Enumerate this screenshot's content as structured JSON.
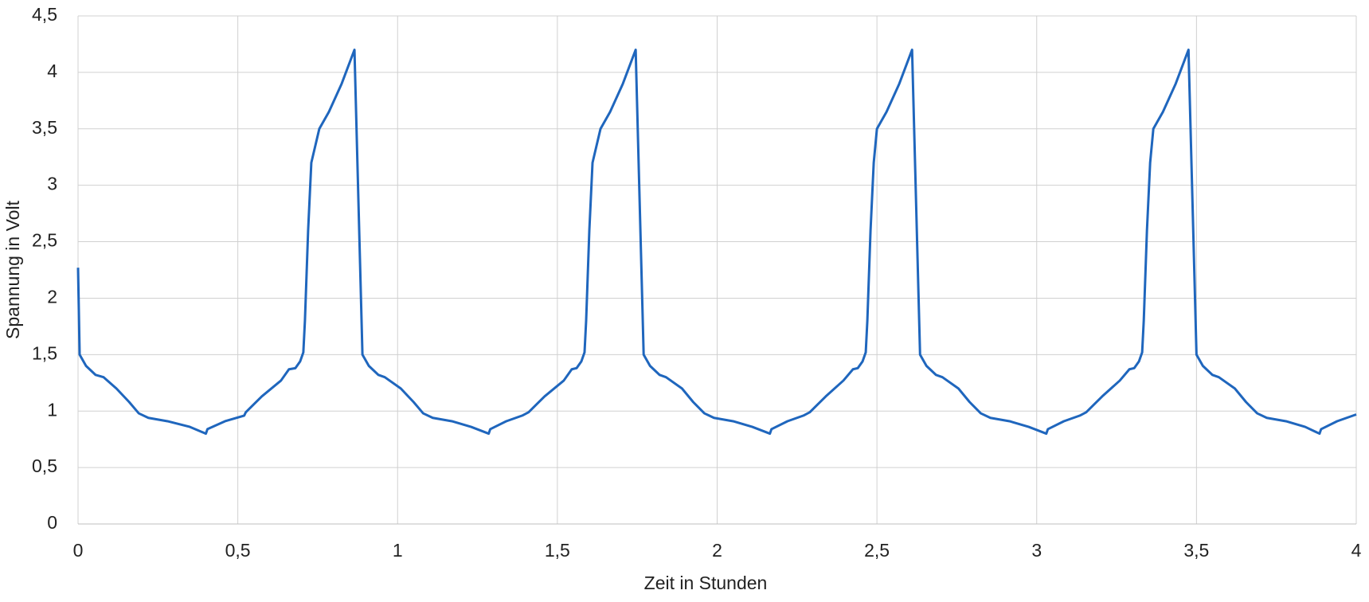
{
  "chart_data": {
    "type": "line",
    "x_label": "Zeit in Stunden",
    "y_label": "Spannung in Volt",
    "x": [
      0,
      0.005,
      0.025,
      0.055,
      0.08,
      0.12,
      0.16,
      0.19,
      0.22,
      0.28,
      0.35,
      0.4,
      0.405,
      0.46,
      0.52,
      0.525,
      0.575,
      0.635,
      0.66,
      0.68,
      0.695,
      0.705,
      0.71,
      0.72,
      0.73,
      0.755,
      0.785,
      0.825,
      0.865,
      0.89,
      0.91,
      0.94,
      0.96,
      1.01,
      1.05,
      1.08,
      1.11,
      1.17,
      1.23,
      1.285,
      1.29,
      1.34,
      1.39,
      1.41,
      1.46,
      1.52,
      1.545,
      1.56,
      1.575,
      1.585,
      1.59,
      1.6,
      1.61,
      1.635,
      1.665,
      1.705,
      1.745,
      1.77,
      1.79,
      1.82,
      1.84,
      1.89,
      1.925,
      1.96,
      1.99,
      2.05,
      2.11,
      2.165,
      2.17,
      2.22,
      2.27,
      2.29,
      2.34,
      2.395,
      2.425,
      2.44,
      2.455,
      2.465,
      2.47,
      2.48,
      2.49,
      2.5,
      2.53,
      2.57,
      2.61,
      2.635,
      2.655,
      2.685,
      2.705,
      2.755,
      2.79,
      2.825,
      2.855,
      2.915,
      2.975,
      3.03,
      3.035,
      3.085,
      3.135,
      3.155,
      3.205,
      3.26,
      3.29,
      3.305,
      3.32,
      3.33,
      3.335,
      3.345,
      3.355,
      3.365,
      3.395,
      3.435,
      3.475,
      3.5,
      3.52,
      3.55,
      3.57,
      3.62,
      3.655,
      3.69,
      3.72,
      3.78,
      3.84,
      3.885,
      3.89,
      3.94,
      4.0
    ],
    "series": [
      {
        "color": "#1f66bd",
        "values": [
          2.27,
          1.5,
          1.4,
          1.32,
          1.3,
          1.2,
          1.08,
          0.98,
          0.94,
          0.91,
          0.86,
          0.8,
          0.84,
          0.91,
          0.96,
          0.99,
          1.13,
          1.27,
          1.37,
          1.38,
          1.44,
          1.52,
          1.8,
          2.6,
          3.2,
          3.5,
          3.65,
          3.9,
          4.2,
          1.5,
          1.4,
          1.32,
          1.3,
          1.2,
          1.08,
          0.98,
          0.94,
          0.91,
          0.86,
          0.8,
          0.84,
          0.91,
          0.96,
          0.99,
          1.13,
          1.27,
          1.37,
          1.38,
          1.44,
          1.52,
          1.8,
          2.6,
          3.2,
          3.5,
          3.65,
          3.9,
          4.2,
          1.5,
          1.4,
          1.32,
          1.3,
          1.2,
          1.08,
          0.98,
          0.94,
          0.91,
          0.86,
          0.8,
          0.84,
          0.91,
          0.96,
          0.99,
          1.13,
          1.27,
          1.37,
          1.38,
          1.44,
          1.52,
          1.8,
          2.6,
          3.2,
          3.5,
          3.65,
          3.9,
          4.2,
          1.5,
          1.4,
          1.32,
          1.3,
          1.2,
          1.08,
          0.98,
          0.94,
          0.91,
          0.86,
          0.8,
          0.84,
          0.91,
          0.96,
          0.99,
          1.13,
          1.27,
          1.37,
          1.38,
          1.44,
          1.52,
          1.8,
          2.6,
          3.2,
          3.5,
          3.65,
          3.9,
          4.2,
          1.5,
          1.4,
          1.32,
          1.3,
          1.2,
          1.08,
          0.98,
          0.94,
          0.91,
          0.86,
          0.8,
          0.84,
          0.91,
          0.97
        ]
      }
    ],
    "xlim": [
      0,
      4
    ],
    "xticks": [
      0,
      {
        "value": 0.5,
        "label": "0,5"
      },
      1,
      {
        "value": 1.5,
        "label": "1,5"
      },
      2,
      {
        "value": 2.5,
        "label": "2,5"
      },
      3,
      {
        "value": 3.5,
        "label": "3,5"
      },
      4
    ],
    "ylim": [
      0,
      4.5
    ],
    "yticks": [
      0,
      {
        "value": 0.5,
        "label": "0,5"
      },
      1,
      {
        "value": 1.5,
        "label": "1,5"
      },
      2,
      {
        "value": 2.5,
        "label": "2,5"
      },
      3,
      {
        "value": 3.5,
        "label": "3,5"
      },
      4,
      {
        "value": 4.5,
        "label": "4,5"
      }
    ],
    "grid": true
  }
}
